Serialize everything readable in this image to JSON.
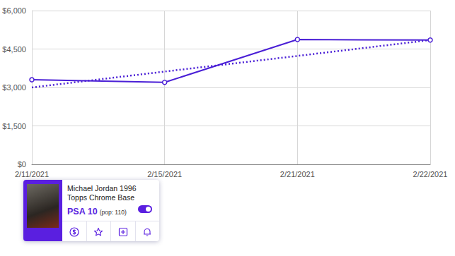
{
  "chart_data": {
    "type": "line",
    "categories": [
      "2/11/2021",
      "2/15/2021",
      "2/21/2021",
      "2/22/2021"
    ],
    "series": [
      {
        "color": "#4a1fd6",
        "values": [
          3300,
          3200,
          4870,
          4850
        ],
        "line_style": "solid",
        "marker": "circle"
      },
      {
        "color": "#4a1fd6",
        "values": [
          3000,
          3620,
          4230,
          4850
        ],
        "line_style": "dotted",
        "marker": "none"
      }
    ],
    "ylim": [
      0,
      6000
    ],
    "yticks": [
      {
        "value": 0,
        "label": "$0"
      },
      {
        "value": 1500,
        "label": "$1,500"
      },
      {
        "value": 3000,
        "label": "$3,000"
      },
      {
        "value": 4500,
        "label": "$4,500"
      },
      {
        "value": 6000,
        "label": "$6,000"
      }
    ],
    "grid": true
  },
  "card": {
    "title": "Michael Jordan 1996 Topps Chrome Base",
    "grade": "PSA 10",
    "pop": "(pop: 110)"
  }
}
